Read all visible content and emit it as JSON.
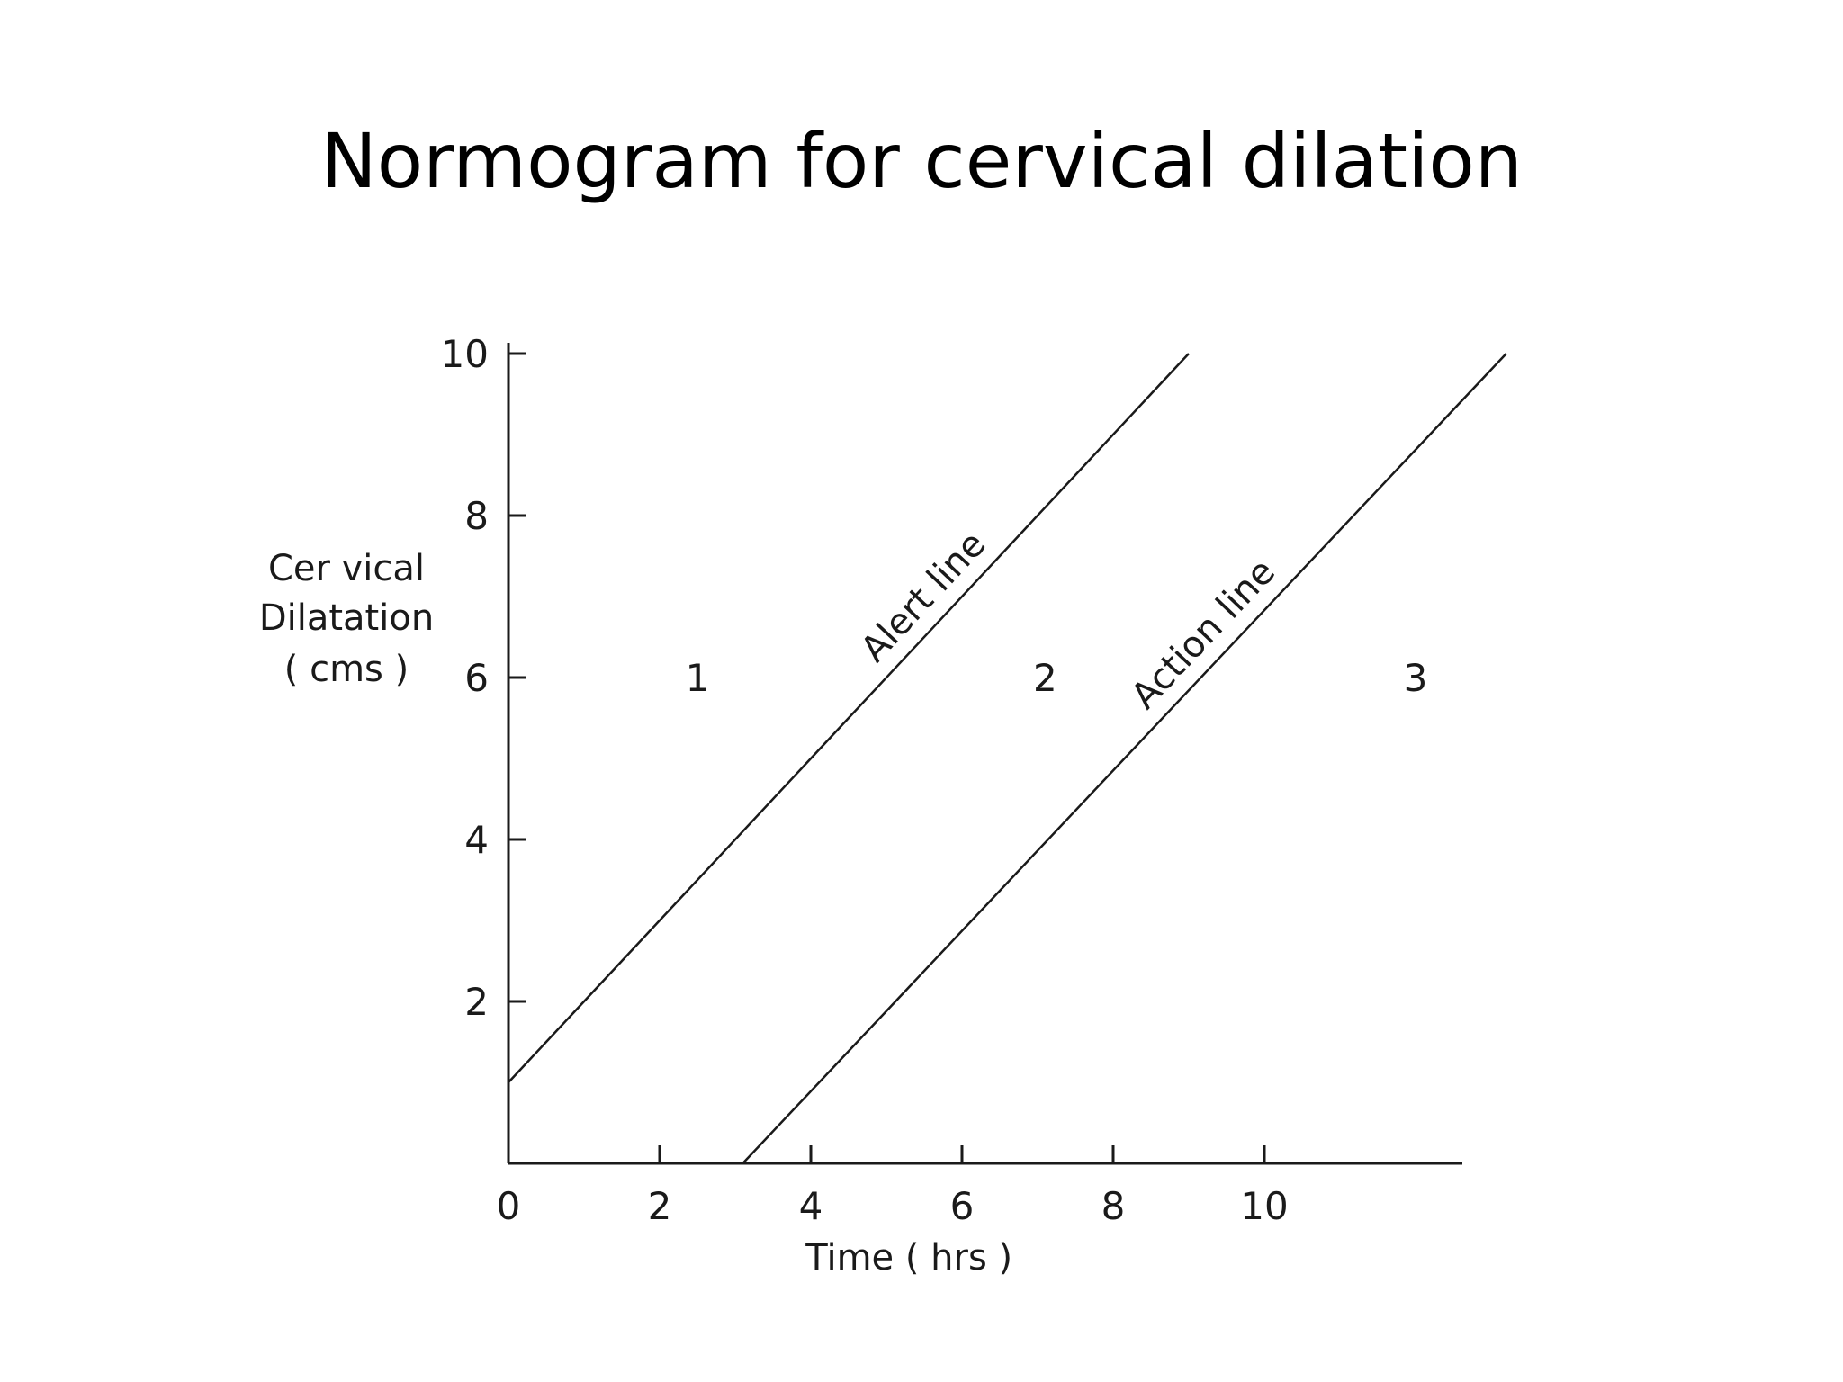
{
  "title": "Normogram for cervical dilation",
  "colors": {
    "line": "#1a1a1a",
    "background": "#ffffff"
  },
  "chart_data": {
    "type": "line",
    "xlabel": "Time ( hrs )",
    "ylabel_lines": [
      "Cer vical",
      "Dilatation",
      "( cms )"
    ],
    "xlim": [
      0,
      12.5
    ],
    "ylim": [
      0,
      10
    ],
    "x_ticks": [
      0,
      2,
      4,
      6,
      8,
      10
    ],
    "x_tick_labels": [
      "0",
      "2",
      "4",
      "6",
      "8",
      "10"
    ],
    "y_ticks": [
      2,
      4,
      6,
      8,
      10
    ],
    "y_tick_labels": [
      "2",
      "4",
      "6",
      "8",
      "10"
    ],
    "grid": false,
    "series": [
      {
        "name": "Alert line",
        "x": [
          0,
          9
        ],
        "y": [
          1,
          10
        ]
      },
      {
        "name": "Action line",
        "x": [
          3.1,
          13.2
        ],
        "y": [
          0,
          10
        ]
      }
    ],
    "regions": [
      {
        "label": "1",
        "x": 2.5,
        "y": 6
      },
      {
        "label": "2",
        "x": 7.1,
        "y": 6
      },
      {
        "label": "3",
        "x": 12,
        "y": 6
      }
    ]
  }
}
